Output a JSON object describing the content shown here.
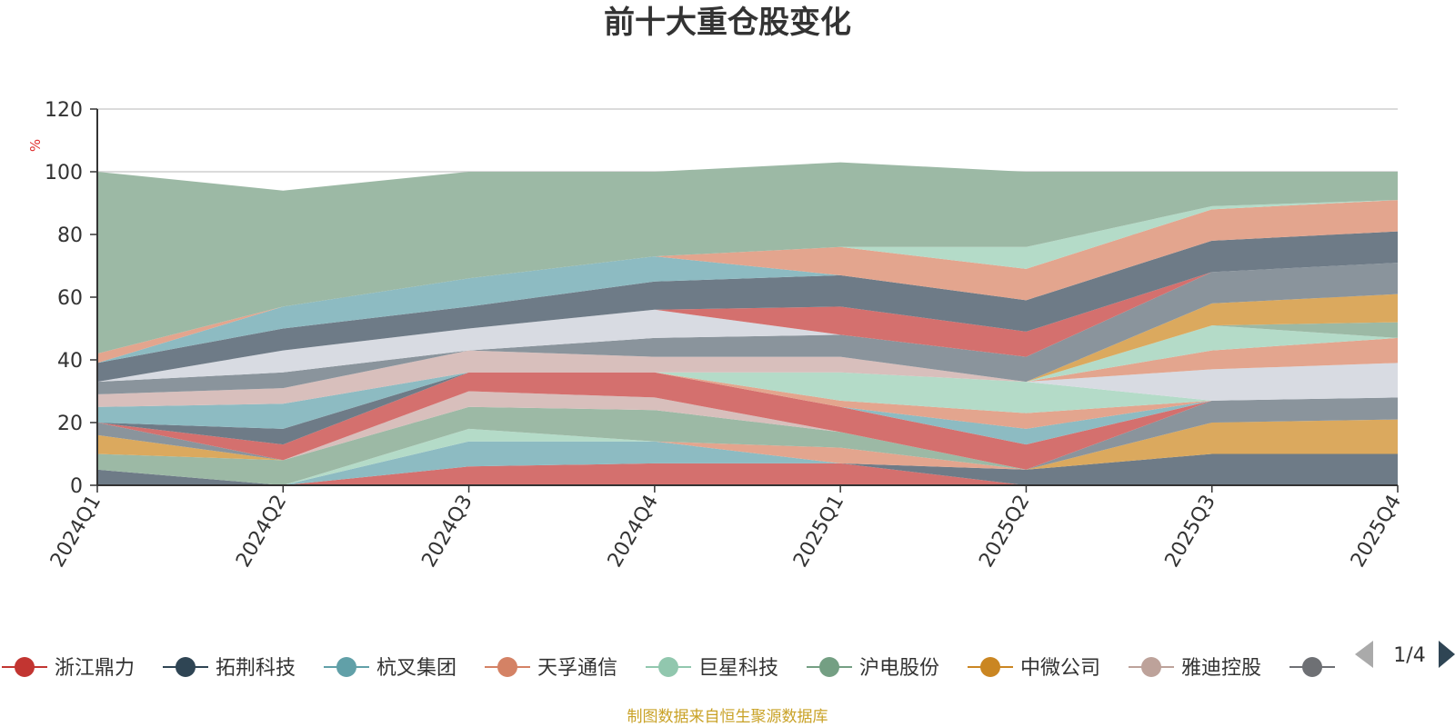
{
  "title": "前十大重仓股变化",
  "source": "制图数据来自恒生聚源数据库",
  "legend_page": "1/4",
  "chart_data": {
    "type": "area",
    "stacked": true,
    "title": "前十大重仓股变化",
    "ylabel": "%",
    "ylim": [
      0,
      120
    ],
    "yticks": [
      0,
      20,
      40,
      60,
      80,
      100,
      120
    ],
    "grid": true,
    "legend_placement": "bottom",
    "categories": [
      "2024Q1",
      "2024Q2",
      "2024Q3",
      "2024Q4",
      "2025Q1",
      "2025Q2",
      "2025Q3",
      "2025Q4"
    ],
    "series": [
      {
        "color": "#d4706e",
        "values": [
          0,
          0,
          6,
          7,
          7,
          0,
          0,
          0
        ]
      },
      {
        "color": "#6e7b87",
        "values": [
          5,
          0,
          0,
          0,
          0,
          5,
          10,
          10
        ]
      },
      {
        "color": "#8dbbc2",
        "values": [
          0,
          0,
          8,
          7,
          0,
          0,
          0,
          0
        ]
      },
      {
        "color": "#e3a58e",
        "values": [
          0,
          0,
          0,
          0,
          5,
          0,
          0,
          0
        ]
      },
      {
        "color": "#b4dbc8",
        "values": [
          0,
          0,
          4,
          0,
          0,
          0,
          0,
          0
        ]
      },
      {
        "color": "#9cb9a5",
        "values": [
          5,
          8,
          7,
          10,
          5,
          0,
          0,
          0
        ]
      },
      {
        "color": "#dba95e",
        "values": [
          6,
          0,
          0,
          0,
          0,
          0,
          10,
          11
        ]
      },
      {
        "color": "#d8bfbc",
        "values": [
          0,
          0,
          5,
          4,
          0,
          0,
          0,
          0
        ]
      },
      {
        "color": "#8a949c",
        "values": [
          4,
          0,
          0,
          0,
          0,
          0,
          7,
          7
        ]
      },
      {
        "color": "#d4706e",
        "values": [
          0,
          5,
          6,
          8,
          8,
          8,
          0,
          0
        ]
      },
      {
        "color": "#6e7b87",
        "values": [
          0,
          5,
          0,
          0,
          0,
          0,
          0,
          0
        ]
      },
      {
        "color": "#8dbbc2",
        "values": [
          5,
          8,
          0,
          0,
          0,
          5,
          0,
          0
        ]
      },
      {
        "color": "#e3a58e",
        "values": [
          0,
          0,
          0,
          0,
          2,
          5,
          0,
          0
        ]
      },
      {
        "color": "#b4dbc8",
        "values": [
          0,
          0,
          0,
          0,
          9,
          10,
          0,
          0
        ]
      },
      {
        "color": "#d8bfbc",
        "values": [
          4,
          5,
          7,
          5,
          5,
          0,
          0,
          0
        ]
      },
      {
        "color": "#d8dbe2",
        "values": [
          0,
          0,
          0,
          0,
          0,
          0,
          10,
          11
        ]
      },
      {
        "color": "#e3a58e",
        "values": [
          0,
          0,
          0,
          0,
          0,
          0,
          6,
          8
        ]
      },
      {
        "color": "#b4dbc8",
        "values": [
          0,
          0,
          0,
          0,
          0,
          0,
          8,
          0
        ]
      },
      {
        "color": "#9cb9a5",
        "values": [
          0,
          0,
          0,
          0,
          0,
          0,
          0,
          5
        ]
      },
      {
        "color": "#dba95e",
        "values": [
          0,
          0,
          0,
          0,
          0,
          0,
          7,
          9
        ]
      },
      {
        "color": "#8a949c",
        "values": [
          4,
          5,
          0,
          6,
          7,
          8,
          10,
          10
        ]
      },
      {
        "color": "#d8dbe2",
        "values": [
          0,
          7,
          7,
          9,
          0,
          0,
          0,
          0
        ]
      },
      {
        "color": "#d4706e",
        "values": [
          0,
          0,
          0,
          0,
          9,
          8,
          0,
          0
        ]
      },
      {
        "color": "#6e7b87",
        "values": [
          6,
          7,
          7,
          9,
          10,
          10,
          10,
          10
        ]
      },
      {
        "color": "#8dbbc2",
        "values": [
          0,
          7,
          9,
          8,
          0,
          0,
          0,
          0
        ]
      },
      {
        "color": "#e3a58e",
        "values": [
          3,
          0,
          0,
          0,
          9,
          10,
          10,
          10
        ]
      },
      {
        "color": "#b4dbc8",
        "values": [
          0,
          0,
          0,
          0,
          0,
          7,
          1,
          0
        ]
      },
      {
        "color": "#9cb9a5",
        "values": [
          58,
          37,
          34,
          27,
          27,
          24,
          11,
          9
        ]
      }
    ],
    "legend": [
      {
        "name": "浙江鼎力",
        "color": "#c23531"
      },
      {
        "name": "拓荆科技",
        "color": "#2f4554"
      },
      {
        "name": "杭叉集团",
        "color": "#61a0a8"
      },
      {
        "name": "天孚通信",
        "color": "#d48265"
      },
      {
        "name": "巨星科技",
        "color": "#91c7ae"
      },
      {
        "name": "沪电股份",
        "color": "#749f83"
      },
      {
        "name": "中微公司",
        "color": "#ca8622"
      },
      {
        "name": "雅迪控股",
        "color": "#bda29a"
      },
      {
        "name": "",
        "color": "#6e7074"
      }
    ]
  }
}
